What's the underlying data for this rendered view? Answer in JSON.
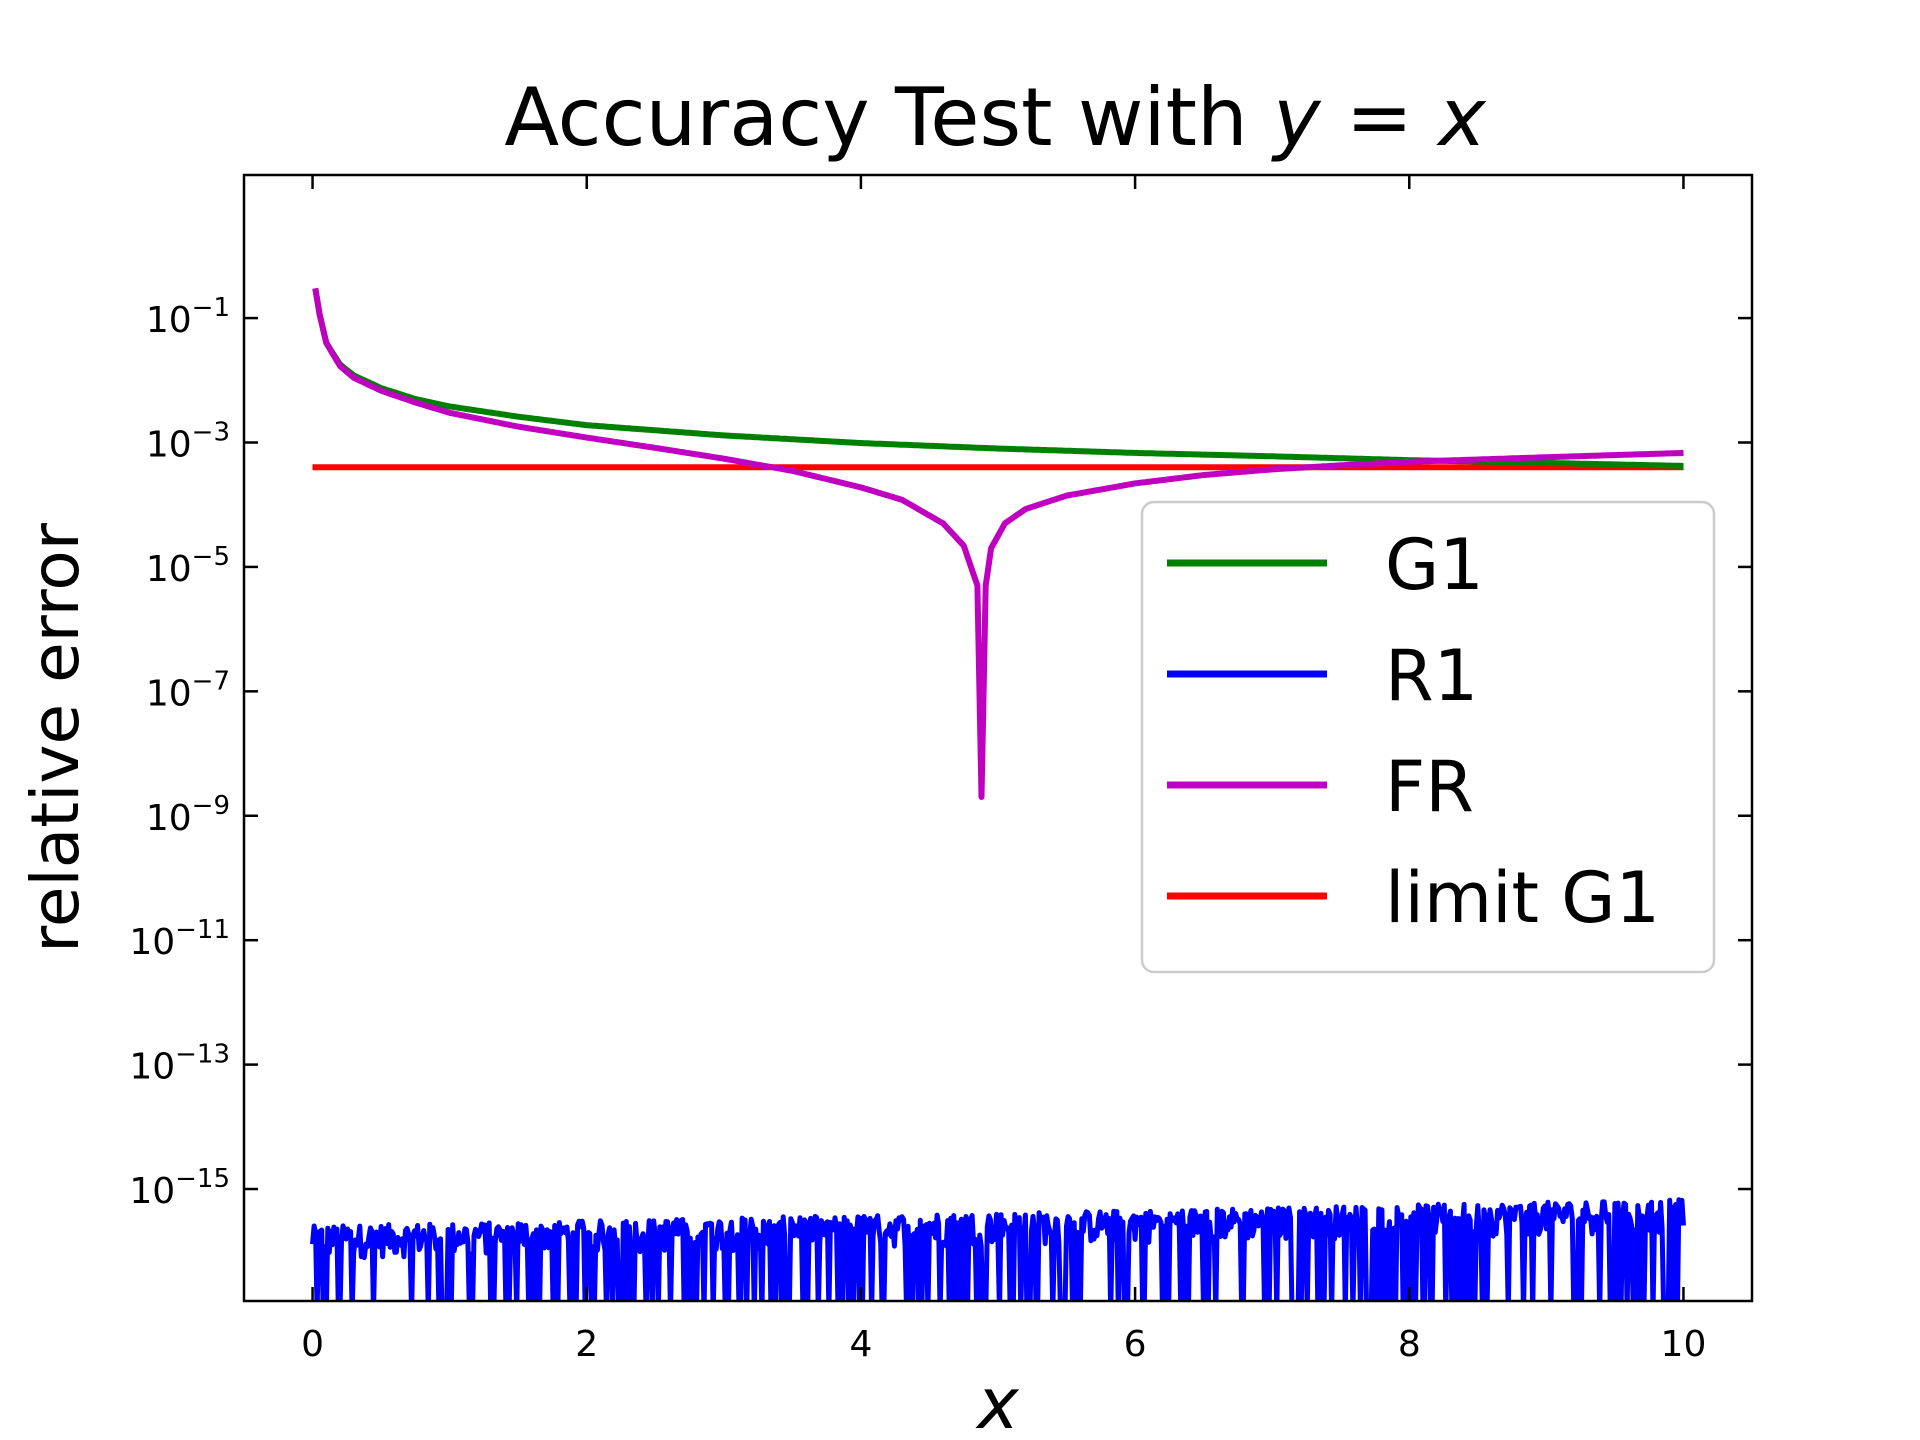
{
  "chart_data": {
    "type": "line",
    "title_prefix": "Accuracy Test with ",
    "title_math": "y = x",
    "xlabel": "x",
    "ylabel": "relative error",
    "xlim": [
      -0.5,
      10.5
    ],
    "ylim_log10": [
      -16.8,
      1.3
    ],
    "y_scale": "log",
    "x_ticks": [
      0,
      2,
      4,
      6,
      8,
      10
    ],
    "y_ticks_exp": [
      -1,
      -3,
      -5,
      -7,
      -9,
      -11,
      -13,
      -15
    ],
    "y_tick_base": "10",
    "legend_position": "center-right",
    "series": [
      {
        "name": "G1",
        "color": "#008000",
        "x": [
          0.02,
          0.05,
          0.1,
          0.2,
          0.3,
          0.5,
          0.75,
          1,
          1.5,
          2,
          3,
          4,
          5,
          6,
          7,
          8,
          9,
          10
        ],
        "y": [
          0.3,
          0.12,
          0.04,
          0.018,
          0.012,
          0.0075,
          0.005,
          0.0038,
          0.0026,
          0.0019,
          0.0013,
          0.00098,
          0.0008,
          0.00068,
          0.0006,
          0.00052,
          0.00047,
          0.00042
        ]
      },
      {
        "name": "R1",
        "color": "#0000ff",
        "x": [
          0,
          10
        ],
        "y": [
          1.5e-16,
          4e-16
        ],
        "floor": 1e-17
      },
      {
        "name": "FR",
        "color": "#c000c0",
        "x": [
          0.02,
          0.05,
          0.1,
          0.2,
          0.3,
          0.5,
          0.75,
          1,
          1.5,
          2,
          2.5,
          3,
          3.5,
          4,
          4.3,
          4.6,
          4.75,
          4.85,
          4.88,
          4.91,
          4.95,
          5.05,
          5.2,
          5.5,
          6,
          6.5,
          7,
          7.5,
          8,
          9,
          10
        ],
        "y": [
          0.3,
          0.12,
          0.04,
          0.017,
          0.011,
          0.0068,
          0.0044,
          0.003,
          0.0018,
          0.0012,
          0.00082,
          0.00055,
          0.00035,
          0.00019,
          0.00012,
          5e-05,
          2.2e-05,
          5e-06,
          2e-09,
          5e-06,
          2e-05,
          5e-05,
          8.5e-05,
          0.00014,
          0.00022,
          0.0003,
          0.00037,
          0.00043,
          0.00049,
          0.00058,
          0.00068
        ]
      },
      {
        "name": "limit G1",
        "color": "#ff0000",
        "x": [
          0,
          10
        ],
        "y": [
          0.0004,
          0.0004
        ]
      }
    ]
  }
}
